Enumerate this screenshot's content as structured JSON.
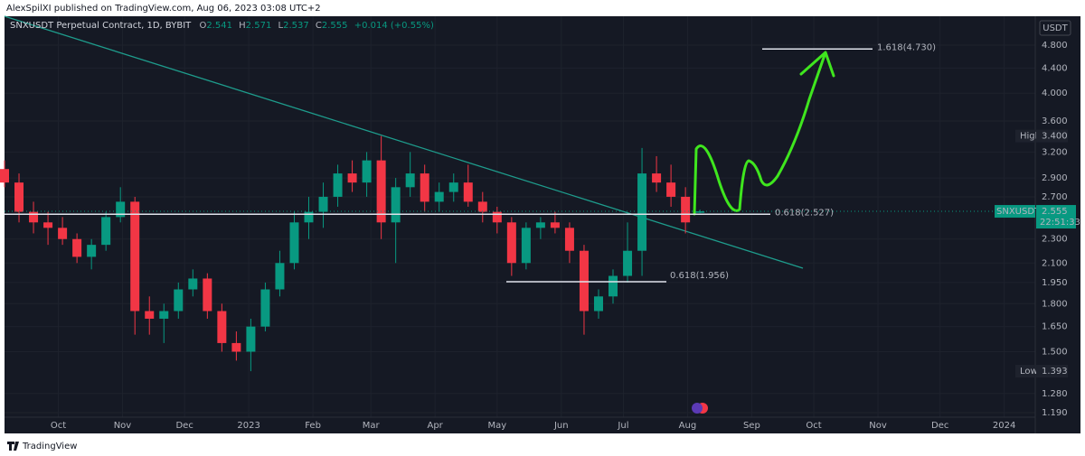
{
  "header": {
    "publisher": "AlexSpilXI published on TradingView.com, Aug 06, 2023 03:08 UTC+2"
  },
  "footer": {
    "brand": "TradingView"
  },
  "chart_data": {
    "type": "candlestick",
    "title": "SNXUSDT Perpetual Contract, 1D, BYBIT",
    "ohlc": [
      {
        "label": "O",
        "value": 2.541
      },
      {
        "label": "H",
        "value": 2.571
      },
      {
        "label": "L",
        "value": 2.537
      },
      {
        "label": "C",
        "value": 2.555
      }
    ],
    "change": "+0.014 (+0.55%)",
    "currency": "USDT",
    "x": [
      "2022-09-05",
      "2022-09-12",
      "2022-09-19",
      "2022-09-26",
      "2022-10-03",
      "2022-10-10",
      "2022-10-17",
      "2022-10-24",
      "2022-10-31",
      "2022-11-07",
      "2022-11-14",
      "2022-11-21",
      "2022-11-28",
      "2022-12-05",
      "2022-12-12",
      "2022-12-19",
      "2022-12-26",
      "2023-01-02",
      "2023-01-09",
      "2023-01-16",
      "2023-01-23",
      "2023-01-30",
      "2023-02-06",
      "2023-02-13",
      "2023-02-20",
      "2023-02-27",
      "2023-03-06",
      "2023-03-13",
      "2023-03-20",
      "2023-03-27",
      "2023-04-03",
      "2023-04-10",
      "2023-04-17",
      "2023-04-24",
      "2023-05-01",
      "2023-05-08",
      "2023-05-15",
      "2023-05-22",
      "2023-05-29",
      "2023-06-05",
      "2023-06-12",
      "2023-06-19",
      "2023-06-26",
      "2023-07-03",
      "2023-07-10",
      "2023-07-17",
      "2023-07-24",
      "2023-07-31",
      "2023-08-07"
    ],
    "open": [
      3.0,
      2.85,
      2.55,
      2.45,
      2.4,
      2.3,
      2.15,
      2.25,
      2.5,
      2.65,
      1.75,
      1.7,
      1.75,
      1.9,
      1.98,
      1.75,
      1.55,
      1.5,
      1.65,
      1.9,
      2.1,
      2.45,
      2.55,
      2.7,
      2.95,
      2.85,
      3.1,
      2.45,
      2.8,
      2.95,
      2.65,
      2.75,
      2.85,
      2.65,
      2.55,
      2.45,
      2.1,
      2.4,
      2.45,
      2.4,
      2.2,
      1.75,
      1.85,
      2.0,
      2.2,
      2.95,
      2.85,
      2.7,
      2.541
    ],
    "high": [
      3.1,
      2.95,
      2.65,
      2.55,
      2.5,
      2.35,
      2.3,
      2.55,
      2.8,
      2.7,
      1.85,
      1.8,
      1.95,
      2.05,
      2.02,
      1.8,
      1.62,
      1.7,
      1.95,
      2.2,
      2.55,
      2.7,
      2.85,
      3.05,
      3.1,
      3.2,
      3.4,
      2.9,
      3.2,
      3.05,
      2.85,
      2.95,
      3.05,
      2.75,
      2.6,
      2.5,
      2.45,
      2.5,
      2.55,
      2.45,
      2.25,
      1.9,
      2.05,
      2.45,
      3.25,
      3.15,
      3.05,
      2.8,
      2.571
    ],
    "low": [
      2.8,
      2.45,
      2.35,
      2.25,
      2.25,
      2.1,
      2.05,
      2.2,
      2.45,
      1.6,
      1.6,
      1.55,
      1.7,
      1.85,
      1.7,
      1.5,
      1.45,
      1.393,
      1.62,
      1.85,
      2.05,
      2.3,
      2.4,
      2.6,
      2.75,
      2.7,
      2.3,
      2.1,
      2.7,
      2.55,
      2.55,
      2.65,
      2.6,
      2.45,
      2.35,
      2.0,
      2.05,
      2.3,
      2.35,
      2.1,
      1.6,
      1.7,
      1.8,
      1.95,
      2.0,
      2.75,
      2.6,
      2.35,
      2.537
    ],
    "close": [
      2.85,
      2.55,
      2.45,
      2.4,
      2.3,
      2.15,
      2.25,
      2.5,
      2.65,
      1.75,
      1.7,
      1.75,
      1.9,
      1.98,
      1.75,
      1.55,
      1.5,
      1.65,
      1.9,
      2.1,
      2.45,
      2.55,
      2.7,
      2.95,
      2.85,
      3.1,
      2.45,
      2.8,
      2.95,
      2.65,
      2.75,
      2.85,
      2.65,
      2.55,
      2.45,
      2.1,
      2.4,
      2.45,
      2.4,
      2.2,
      1.75,
      1.85,
      2.0,
      2.2,
      2.95,
      2.85,
      2.7,
      2.45,
      2.555
    ],
    "up_color": "#089981",
    "down_color": "#f23645",
    "log_scale": true,
    "grid": true,
    "xlim": [
      "2022-09-05",
      "2024-01-16"
    ],
    "xticks": [
      {
        "value": "2022-10-01",
        "label": "Oct"
      },
      {
        "value": "2022-11-01",
        "label": "Nov"
      },
      {
        "value": "2022-12-01",
        "label": "Dec"
      },
      {
        "value": "2023-01-01",
        "label": "2023"
      },
      {
        "value": "2023-02-01",
        "label": "Feb"
      },
      {
        "value": "2023-03-01",
        "label": "Mar"
      },
      {
        "value": "2023-04-01",
        "label": "Apr"
      },
      {
        "value": "2023-05-01",
        "label": "May"
      },
      {
        "value": "2023-06-01",
        "label": "Jun"
      },
      {
        "value": "2023-07-01",
        "label": "Jul"
      },
      {
        "value": "2023-08-01",
        "label": "Aug"
      },
      {
        "value": "2023-09-01",
        "label": "Sep"
      },
      {
        "value": "2023-10-01",
        "label": "Oct"
      },
      {
        "value": "2023-11-01",
        "label": "Nov"
      },
      {
        "value": "2023-12-01",
        "label": "Dec"
      },
      {
        "value": "2024-01-01",
        "label": "2024"
      }
    ],
    "ylim": [
      1.17,
      5.32
    ],
    "yticks": [
      {
        "value": 4.8,
        "label": "4.800"
      },
      {
        "value": 4.4,
        "label": "4.400"
      },
      {
        "value": 4.0,
        "label": "4.000"
      },
      {
        "value": 3.6,
        "label": "3.600"
      },
      {
        "value": 3.2,
        "label": "3.200"
      },
      {
        "value": 2.9,
        "label": "2.900"
      },
      {
        "value": 2.7,
        "label": "2.700"
      },
      {
        "value": 2.3,
        "label": "2.300"
      },
      {
        "value": 2.1,
        "label": "2.100"
      },
      {
        "value": 1.95,
        "label": "1.950"
      },
      {
        "value": 1.8,
        "label": "1.800"
      },
      {
        "value": 1.65,
        "label": "1.650"
      },
      {
        "value": 1.5,
        "label": "1.500"
      },
      {
        "value": 1.28,
        "label": "1.280"
      },
      {
        "value": 1.19,
        "label": "1.190"
      }
    ],
    "levels": [
      {
        "value": 4.73,
        "label": "1.618(4.730)"
      },
      {
        "value": 2.527,
        "label": "0.618(2.527)"
      },
      {
        "value": 1.956,
        "label": "0.618(1.956)"
      }
    ],
    "markers": [
      {
        "name": "High",
        "price": {
          "value": 3.4,
          "label": "3.400"
        }
      },
      {
        "name": "Low",
        "price": {
          "value": 1.393,
          "label": "1.393"
        }
      }
    ],
    "last_price": {
      "symbol": "SNXUSDT.P",
      "price": 2.555,
      "countdown": "22:51:33"
    }
  }
}
